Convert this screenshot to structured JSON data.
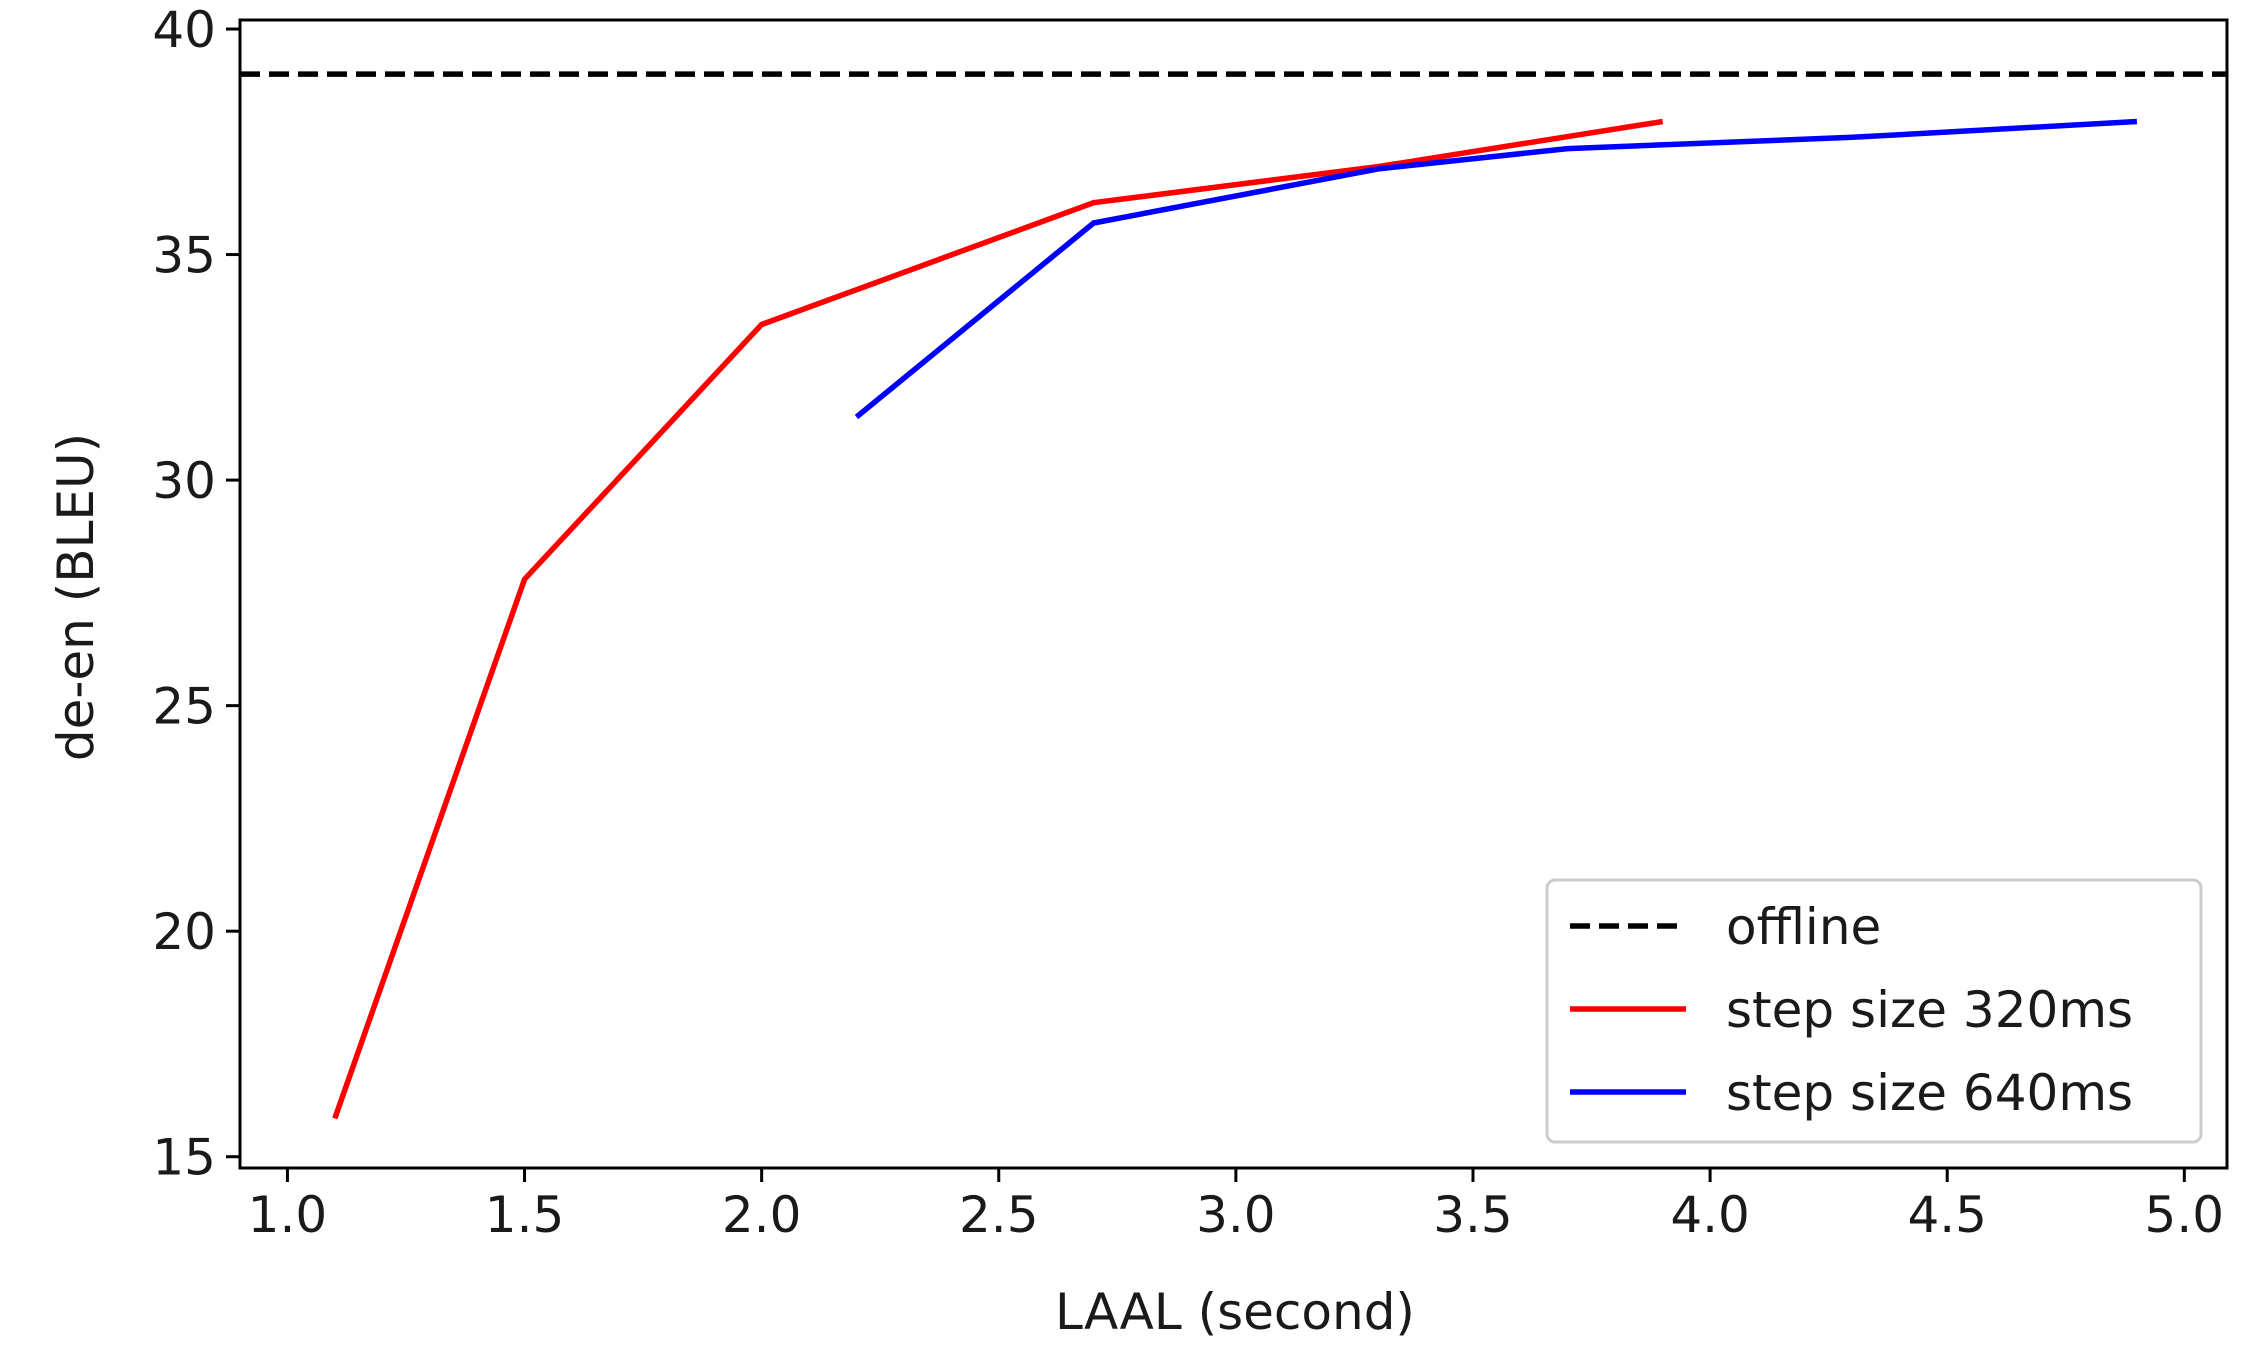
{
  "chart_data": {
    "type": "line",
    "title": "",
    "xlabel": "LAAL (second)",
    "ylabel": "de-en (BLEU)",
    "xlim": [
      0.9,
      5.09
    ],
    "ylim": [
      14.75,
      40.2
    ],
    "xticks": [
      1.0,
      1.5,
      2.0,
      2.5,
      3.0,
      3.5,
      4.0,
      4.5,
      5.0
    ],
    "xtick_labels": [
      "1.0",
      "1.5",
      "2.0",
      "2.5",
      "3.0",
      "3.5",
      "4.0",
      "4.5",
      "5.0"
    ],
    "yticks": [
      15,
      20,
      25,
      30,
      35,
      40
    ],
    "ytick_labels": [
      "15",
      "20",
      "25",
      "30",
      "35",
      "40"
    ],
    "grid": false,
    "legend_position": "lower-right",
    "series": [
      {
        "name": "offline",
        "color": "#000000",
        "dash": "dashed",
        "x": [
          0.9,
          5.09
        ],
        "y": [
          39.0,
          39.0
        ]
      },
      {
        "name": "step size 320ms",
        "color": "#ff0000",
        "dash": "solid",
        "x": [
          1.1,
          1.5,
          2.0,
          2.7,
          3.3,
          3.9
        ],
        "y": [
          15.85,
          27.8,
          33.45,
          36.15,
          36.95,
          37.95
        ]
      },
      {
        "name": "step size 640ms",
        "color": "#0000ff",
        "dash": "solid",
        "x": [
          2.2,
          2.7,
          3.3,
          3.7,
          4.3,
          4.9
        ],
        "y": [
          31.4,
          35.7,
          36.9,
          37.35,
          37.6,
          37.95
        ]
      }
    ]
  }
}
